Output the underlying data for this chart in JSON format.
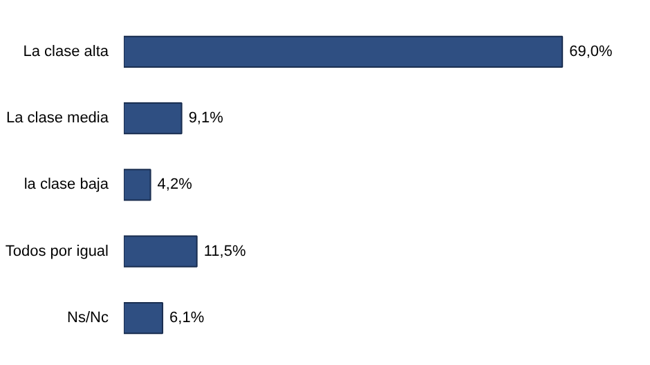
{
  "chart_data": {
    "type": "bar",
    "orientation": "horizontal",
    "categories": [
      "La clase alta",
      "La clase media",
      "la clase baja",
      "Todos por igual",
      "Ns/Nc"
    ],
    "values": [
      69.0,
      9.1,
      4.2,
      11.5,
      6.1
    ],
    "value_labels": [
      "69,0%",
      "9,1%",
      "4,2%",
      "11,5%",
      "6,1%"
    ],
    "color": "#2f4f82",
    "grid": false
  }
}
